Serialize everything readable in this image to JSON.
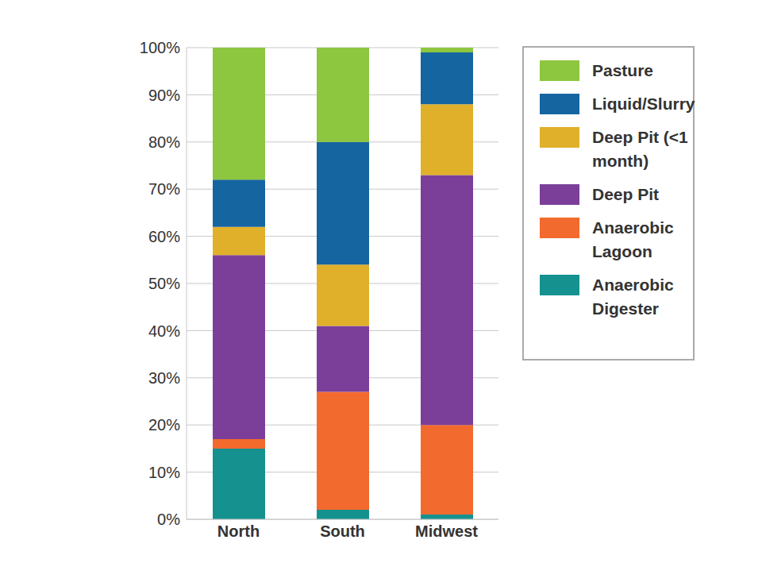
{
  "chart_data": {
    "type": "bar",
    "stacked": true,
    "grid": true,
    "legend": "right",
    "categories": [
      "North",
      "South",
      "Midwest"
    ],
    "series": [
      {
        "name": "Anaerobic Digester",
        "color": "#15918f",
        "values": [
          15,
          2,
          1
        ]
      },
      {
        "name": "Anaerobic Lagoon",
        "color": "#f26a2e",
        "values": [
          2,
          25,
          19
        ]
      },
      {
        "name": "Deep Pit",
        "color": "#7b3f9a",
        "values": [
          39,
          14,
          53
        ]
      },
      {
        "name": "Deep Pit (<1 month)",
        "color": "#e0b02a",
        "values": [
          6,
          13,
          15
        ]
      },
      {
        "name": "Liquid/Slurry",
        "color": "#1565a0",
        "values": [
          10,
          26,
          11
        ]
      },
      {
        "name": "Pasture",
        "color": "#8dc63f",
        "values": [
          28,
          20,
          1
        ]
      }
    ],
    "ylim": [
      0,
      100
    ],
    "yticks": [
      {
        "value": 0,
        "label": "0%"
      },
      {
        "value": 10,
        "label": "10%"
      },
      {
        "value": 20,
        "label": "20%"
      },
      {
        "value": 30,
        "label": "30%"
      },
      {
        "value": 40,
        "label": "40%"
      },
      {
        "value": 50,
        "label": "50%"
      },
      {
        "value": 60,
        "label": "60%"
      },
      {
        "value": 70,
        "label": "70%"
      },
      {
        "value": 80,
        "label": "80%"
      },
      {
        "value": 90,
        "label": "90%"
      },
      {
        "value": 100,
        "label": "100%"
      }
    ]
  }
}
